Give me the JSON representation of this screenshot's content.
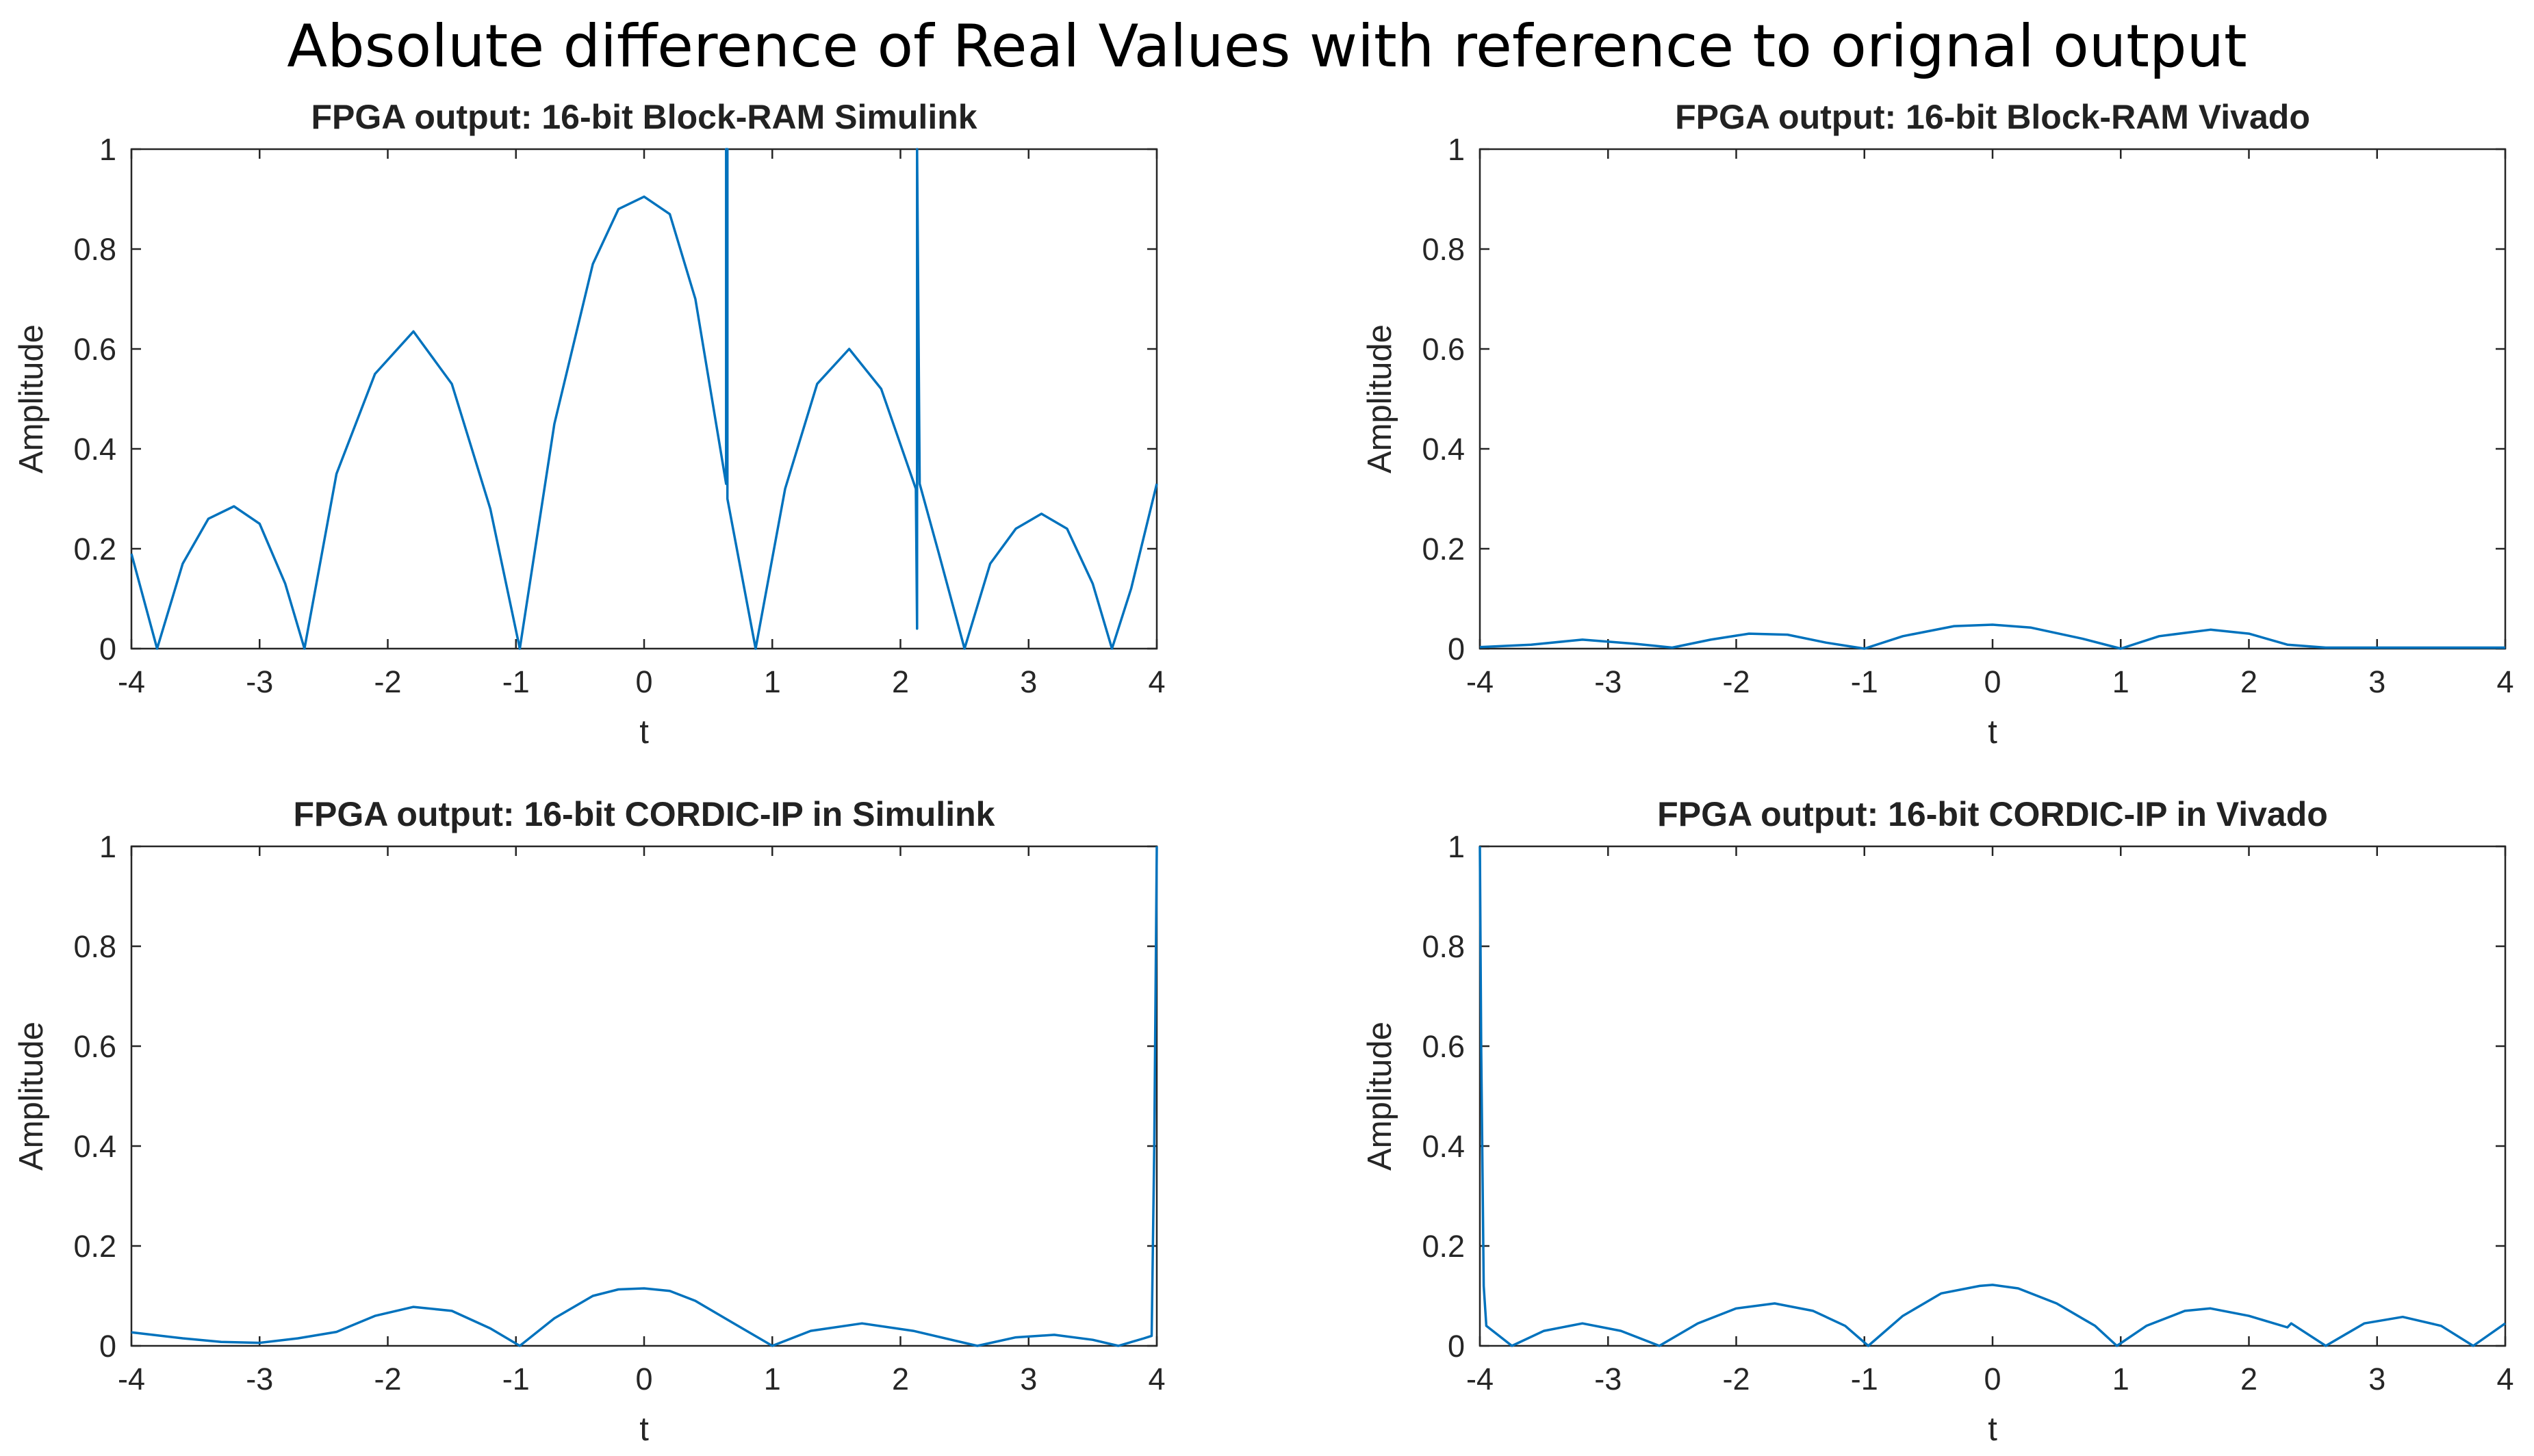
{
  "figure": {
    "title": "Absolute difference of Real Values with reference to orignal output",
    "line_color": "#0072BD"
  },
  "chart_data": [
    {
      "type": "line",
      "title": "FPGA output: 16-bit Block-RAM Simulink",
      "xlabel": "t",
      "ylabel": "Amplitude",
      "xlim": [
        -4,
        4
      ],
      "ylim": [
        0,
        1
      ],
      "xticks": [
        "-4",
        "-3",
        "-2",
        "-1",
        "0",
        "1",
        "2",
        "3",
        "4"
      ],
      "yticks": [
        "0",
        "0.2",
        "0.4",
        "0.6",
        "0.8",
        "1"
      ],
      "grid": false,
      "series": [
        {
          "x": [
            -4,
            -3.8,
            -3.6,
            -3.4,
            -3.2,
            -3.0,
            -2.8,
            -2.65,
            -2.4,
            -2.1,
            -1.8,
            -1.5,
            -1.2,
            -0.97,
            -0.7,
            -0.4,
            -0.2,
            0,
            0.2,
            0.4,
            0.64,
            0.64,
            0.65,
            0.65,
            0.87,
            1.1,
            1.35,
            1.6,
            1.85,
            2.12,
            2.13,
            2.13,
            2.15,
            2.3,
            2.5,
            2.7,
            2.9,
            3.1,
            3.3,
            3.5,
            3.65,
            3.8,
            4
          ],
          "y": [
            0.19,
            0.0,
            0.17,
            0.26,
            0.285,
            0.25,
            0.13,
            0.0,
            0.35,
            0.55,
            0.635,
            0.53,
            0.28,
            0.0,
            0.45,
            0.77,
            0.88,
            0.905,
            0.87,
            0.7,
            0.33,
            1.0,
            1.0,
            0.3,
            0.0,
            0.32,
            0.53,
            0.6,
            0.52,
            0.32,
            0.04,
            1.0,
            0.33,
            0.19,
            0.0,
            0.17,
            0.24,
            0.27,
            0.24,
            0.13,
            0.0,
            0.12,
            0.33
          ]
        }
      ]
    },
    {
      "type": "line",
      "title": "FPGA output: 16-bit Block-RAM Vivado",
      "xlabel": "t",
      "ylabel": "Amplitude",
      "xlim": [
        -4,
        4
      ],
      "ylim": [
        0,
        1
      ],
      "xticks": [
        "-4",
        "-3",
        "-2",
        "-1",
        "0",
        "1",
        "2",
        "3",
        "4"
      ],
      "yticks": [
        "0",
        "0.2",
        "0.4",
        "0.6",
        "0.8",
        "1"
      ],
      "grid": false,
      "series": [
        {
          "x": [
            -4,
            -3.6,
            -3.2,
            -2.8,
            -2.5,
            -2.2,
            -1.9,
            -1.6,
            -1.3,
            -1.0,
            -0.7,
            -0.3,
            0,
            0.3,
            0.7,
            1.0,
            1.3,
            1.7,
            2.0,
            2.3,
            2.6,
            3.0,
            3.4,
            4
          ],
          "y": [
            0.003,
            0.008,
            0.018,
            0.01,
            0.002,
            0.018,
            0.03,
            0.028,
            0.012,
            0.0,
            0.025,
            0.045,
            0.048,
            0.042,
            0.02,
            0.0,
            0.025,
            0.038,
            0.03,
            0.008,
            0.002,
            0.002,
            0.002,
            0.002
          ]
        }
      ]
    },
    {
      "type": "line",
      "title": "FPGA output: 16-bit CORDIC-IP in Simulink",
      "xlabel": "t",
      "ylabel": "Amplitude",
      "xlim": [
        -4,
        4
      ],
      "ylim": [
        0,
        1
      ],
      "xticks": [
        "-4",
        "-3",
        "-2",
        "-1",
        "0",
        "1",
        "2",
        "3",
        "4"
      ],
      "yticks": [
        "0",
        "0.2",
        "0.4",
        "0.6",
        "0.8",
        "1"
      ],
      "grid": false,
      "series": [
        {
          "x": [
            -4,
            -3.6,
            -3.3,
            -3.0,
            -2.7,
            -2.4,
            -2.1,
            -1.8,
            -1.5,
            -1.2,
            -0.97,
            -0.7,
            -0.4,
            -0.2,
            0,
            0.2,
            0.4,
            0.7,
            1.0,
            1.3,
            1.7,
            2.1,
            2.6,
            2.9,
            3.2,
            3.5,
            3.7,
            3.9,
            3.96,
            3.98,
            4.0
          ],
          "y": [
            0.027,
            0.015,
            0.008,
            0.006,
            0.015,
            0.028,
            0.06,
            0.078,
            0.07,
            0.035,
            0.0,
            0.055,
            0.1,
            0.113,
            0.115,
            0.11,
            0.09,
            0.045,
            0.0,
            0.03,
            0.045,
            0.03,
            0.0,
            0.017,
            0.022,
            0.012,
            0.0,
            0.015,
            0.02,
            0.4,
            1.0
          ]
        }
      ]
    },
    {
      "type": "line",
      "title": "FPGA output: 16-bit CORDIC-IP in Vivado",
      "xlabel": "t",
      "ylabel": "Amplitude",
      "xlim": [
        -4,
        4
      ],
      "ylim": [
        0,
        1
      ],
      "xticks": [
        "-4",
        "-3",
        "-2",
        "-1",
        "0",
        "1",
        "2",
        "3",
        "4"
      ],
      "yticks": [
        "0",
        "0.2",
        "0.4",
        "0.6",
        "0.8",
        "1"
      ],
      "grid": false,
      "series": [
        {
          "x": [
            -4,
            -3.99,
            -3.97,
            -3.95,
            -3.75,
            -3.5,
            -3.2,
            -2.9,
            -2.6,
            -2.3,
            -2.0,
            -1.7,
            -1.4,
            -1.15,
            -0.97,
            -0.7,
            -0.4,
            -0.1,
            0,
            0.2,
            0.5,
            0.8,
            0.97,
            1.2,
            1.5,
            1.7,
            2.0,
            2.3,
            2.33,
            2.6,
            2.9,
            3.2,
            3.5,
            3.75,
            4.0
          ],
          "y": [
            1.0,
            0.6,
            0.12,
            0.04,
            0.0,
            0.03,
            0.045,
            0.03,
            0.0,
            0.045,
            0.075,
            0.085,
            0.07,
            0.04,
            0.0,
            0.06,
            0.105,
            0.12,
            0.122,
            0.115,
            0.085,
            0.04,
            0.0,
            0.04,
            0.07,
            0.075,
            0.06,
            0.037,
            0.045,
            0.0,
            0.045,
            0.058,
            0.04,
            0.0,
            0.045
          ]
        }
      ]
    }
  ]
}
